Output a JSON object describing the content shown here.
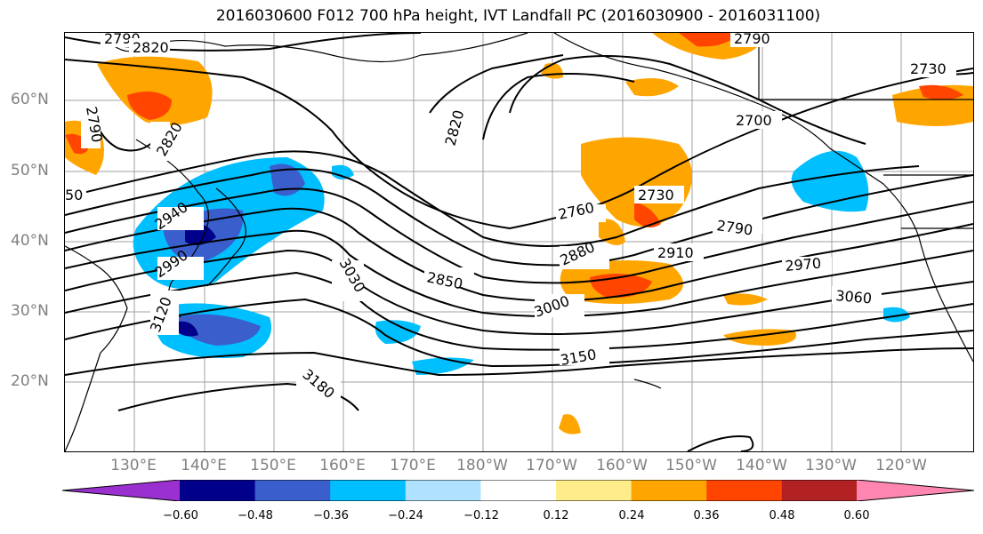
{
  "title": "2016030600 F012 700 hPa height, IVT Landfall PC (2016030900 - 2016031100)",
  "lat_labels": [
    "60°N",
    "50°N",
    "40°N",
    "30°N",
    "20°N"
  ],
  "lon_labels": [
    "130°E",
    "140°E",
    "150°E",
    "160°E",
    "170°E",
    "180°W",
    "170°W",
    "160°W",
    "150°W",
    "140°W",
    "130°W",
    "120°W"
  ],
  "contour_labels": [
    "2790",
    "2820",
    "2790",
    "2730",
    "2700",
    "2820",
    "2820",
    "2790",
    "2730",
    "2760",
    "2790",
    "2910",
    "2880",
    "2970",
    "2850",
    "2940",
    "2990",
    "3030",
    "3000",
    "3060",
    "3120",
    "3150",
    "3180",
    "50"
  ],
  "colorbar": {
    "ticks": [
      "−0.60",
      "−0.48",
      "−0.36",
      "−0.24",
      "−0.12",
      "0.12",
      "0.24",
      "0.36",
      "0.48",
      "0.60"
    ],
    "colors": [
      "#9b30d0",
      "#00008b",
      "#3a5fcd",
      "#00bfff",
      "#b0e2ff",
      "#ffffff",
      "#ffec8b",
      "#ffa500",
      "#ff4500",
      "#b22222",
      "#ff86b0",
      "#ff86b0"
    ]
  }
}
